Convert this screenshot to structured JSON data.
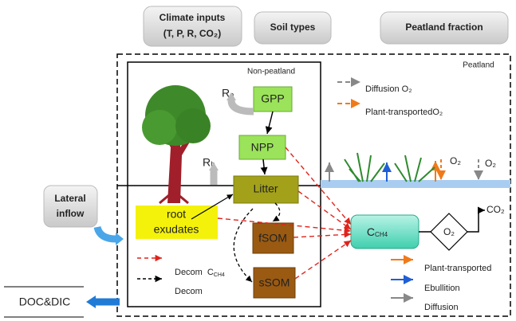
{
  "header": {
    "climate_title": "Climate inputs",
    "climate_vars": "(T, P, R, CO₂)",
    "soil": "Soil types",
    "peatland_fraction": "Peatland fraction"
  },
  "regions": {
    "non_peatland": "Non-peatland",
    "peatland": "Peatland"
  },
  "nodes": {
    "gpp": "GPP",
    "npp": "NPP",
    "litter": "Litter",
    "fsom": "fSOM",
    "ssom": "sSOM",
    "root_exudates": [
      "root",
      "exudates"
    ],
    "ch4": {
      "label": "C",
      "sub": "CH4"
    },
    "o2": "O₂",
    "co2": "CO₂",
    "ra": "Rₐ",
    "rh": "Rₕ"
  },
  "plant_labels": [
    "O₂",
    "O₂"
  ],
  "lateral_inflow": [
    "Lateral",
    "inflow"
  ],
  "output": "DOC&DIC",
  "legend_top": [
    "Diffusion O₂",
    "Plant-transportedO₂"
  ],
  "legend_left": [
    {
      "label": "Decom",
      "c": "C",
      "sub": "CH4"
    },
    {
      "label": "Decom"
    }
  ],
  "legend_right": [
    "Plant-transported",
    "Ebullition",
    "Diffusion"
  ]
}
